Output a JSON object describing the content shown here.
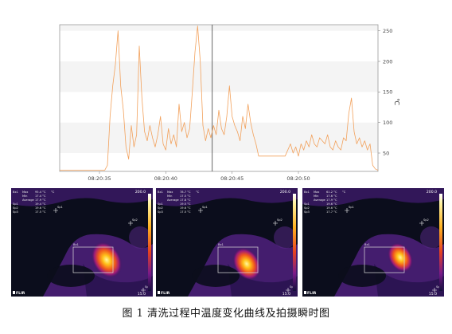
{
  "chart_data": {
    "type": "line",
    "ylabel": "℃",
    "ylim": [
      20,
      260
    ],
    "y_ticks": [
      50,
      100,
      150,
      200,
      250
    ],
    "x_range": [
      "08:20:32",
      "08:20:56"
    ],
    "x_ticks": [
      "08:20:35",
      "08:20:40",
      "08:20:45",
      "08:20:50"
    ],
    "cursor_time": "08:20:43.5",
    "grid": "horizontal bands",
    "series": [
      {
        "color": "#f2a15c",
        "points": [
          [
            "08:20:32.0",
            22
          ],
          [
            "08:20:33.0",
            22
          ],
          [
            "08:20:34.0",
            22
          ],
          [
            "08:20:35.0",
            22
          ],
          [
            "08:20:35.4",
            22
          ],
          [
            "08:20:35.6",
            30
          ],
          [
            "08:20:35.8",
            110
          ],
          [
            "08:20:36.0",
            160
          ],
          [
            "08:20:36.2",
            195
          ],
          [
            "08:20:36.4",
            250
          ],
          [
            "08:20:36.6",
            160
          ],
          [
            "08:20:36.8",
            120
          ],
          [
            "08:20:37.0",
            60
          ],
          [
            "08:20:37.2",
            40
          ],
          [
            "08:20:37.4",
            95
          ],
          [
            "08:20:37.6",
            60
          ],
          [
            "08:20:37.8",
            80
          ],
          [
            "08:20:38.0",
            225
          ],
          [
            "08:20:38.2",
            140
          ],
          [
            "08:20:38.4",
            85
          ],
          [
            "08:20:38.6",
            70
          ],
          [
            "08:20:38.8",
            95
          ],
          [
            "08:20:39.0",
            75
          ],
          [
            "08:20:39.2",
            60
          ],
          [
            "08:20:39.4",
            80
          ],
          [
            "08:20:39.6",
            110
          ],
          [
            "08:20:39.8",
            65
          ],
          [
            "08:20:40.0",
            55
          ],
          [
            "08:20:40.2",
            90
          ],
          [
            "08:20:40.4",
            65
          ],
          [
            "08:20:40.6",
            80
          ],
          [
            "08:20:40.8",
            60
          ],
          [
            "08:20:41.0",
            130
          ],
          [
            "08:20:41.2",
            85
          ],
          [
            "08:20:41.4",
            100
          ],
          [
            "08:20:41.6",
            75
          ],
          [
            "08:20:41.8",
            90
          ],
          [
            "08:20:42.0",
            150
          ],
          [
            "08:20:42.2",
            215
          ],
          [
            "08:20:42.4",
            258
          ],
          [
            "08:20:42.6",
            200
          ],
          [
            "08:20:42.8",
            95
          ],
          [
            "08:20:43.0",
            70
          ],
          [
            "08:20:43.2",
            90
          ],
          [
            "08:20:43.4",
            75
          ],
          [
            "08:20:43.6",
            95
          ],
          [
            "08:20:43.8",
            80
          ],
          [
            "08:20:44.0",
            120
          ],
          [
            "08:20:44.2",
            90
          ],
          [
            "08:20:44.4",
            80
          ],
          [
            "08:20:44.6",
            110
          ],
          [
            "08:20:44.8",
            160
          ],
          [
            "08:20:45.0",
            110
          ],
          [
            "08:20:45.2",
            95
          ],
          [
            "08:20:45.4",
            85
          ],
          [
            "08:20:45.6",
            70
          ],
          [
            "08:20:45.8",
            110
          ],
          [
            "08:20:46.0",
            90
          ],
          [
            "08:20:46.2",
            130
          ],
          [
            "08:20:46.4",
            100
          ],
          [
            "08:20:46.6",
            80
          ],
          [
            "08:20:46.8",
            65
          ],
          [
            "08:20:47.0",
            45
          ],
          [
            "08:20:48.0",
            45
          ],
          [
            "08:20:49.0",
            45
          ],
          [
            "08:20:49.2",
            55
          ],
          [
            "08:20:49.4",
            65
          ],
          [
            "08:20:49.6",
            50
          ],
          [
            "08:20:49.8",
            60
          ],
          [
            "08:20:50.0",
            45
          ],
          [
            "08:20:50.2",
            65
          ],
          [
            "08:20:50.4",
            55
          ],
          [
            "08:20:50.6",
            70
          ],
          [
            "08:20:50.8",
            60
          ],
          [
            "08:20:51.0",
            80
          ],
          [
            "08:20:51.2",
            65
          ],
          [
            "08:20:51.4",
            60
          ],
          [
            "08:20:51.6",
            75
          ],
          [
            "08:20:51.8",
            70
          ],
          [
            "08:20:52.0",
            65
          ],
          [
            "08:20:52.2",
            80
          ],
          [
            "08:20:52.4",
            60
          ],
          [
            "08:20:52.6",
            55
          ],
          [
            "08:20:52.8",
            70
          ],
          [
            "08:20:53.0",
            60
          ],
          [
            "08:20:53.2",
            55
          ],
          [
            "08:20:53.4",
            75
          ],
          [
            "08:20:53.6",
            70
          ],
          [
            "08:20:53.8",
            115
          ],
          [
            "08:20:54.0",
            140
          ],
          [
            "08:20:54.2",
            85
          ],
          [
            "08:20:54.4",
            65
          ],
          [
            "08:20:54.6",
            75
          ],
          [
            "08:20:54.8",
            60
          ],
          [
            "08:20:55.0",
            70
          ],
          [
            "08:20:55.2",
            55
          ],
          [
            "08:20:55.4",
            65
          ],
          [
            "08:20:55.6",
            30
          ],
          [
            "08:20:55.8",
            24
          ],
          [
            "08:20:56.0",
            22
          ]
        ]
      }
    ]
  },
  "thermal_images": [
    {
      "scale_max": "200.0",
      "scale_min": "15.0",
      "unit": "°C",
      "table": [
        [
          "Bx1",
          "Max",
          "95.4 °C"
        ],
        [
          "",
          "Min",
          "17.4 °C"
        ],
        [
          "",
          "Average",
          "17.9 °C"
        ],
        [
          "Sp1",
          "",
          "19.4 °C"
        ],
        [
          "Sp2",
          "",
          "19.6 °C"
        ],
        [
          "Sp3",
          "",
          "17.5 °C"
        ]
      ],
      "markers": [
        "Sp1",
        "Sp2",
        "Sp3",
        "Bx1"
      ],
      "logo": "FLIR"
    },
    {
      "scale_max": "200.0",
      "scale_min": "15.0",
      "unit": "°C",
      "table": [
        [
          "Bx1",
          "Max",
          "78.7 °C"
        ],
        [
          "",
          "Min",
          "17.5 °C"
        ],
        [
          "",
          "Average",
          "17.8 °C"
        ],
        [
          "Sp1",
          "",
          "19.5 °C"
        ],
        [
          "Sp2",
          "",
          "19.6 °C"
        ],
        [
          "Sp3",
          "",
          "17.5 °C"
        ]
      ],
      "markers": [
        "Sp1",
        "Sp2",
        "Sp3",
        "Bx1"
      ],
      "logo": "FLIR"
    },
    {
      "scale_max": "200.0",
      "scale_min": "15.0",
      "unit": "°C",
      "table": [
        [
          "Bx1",
          "Max",
          "61.2 °C"
        ],
        [
          "",
          "Min",
          "17.6 °C"
        ],
        [
          "",
          "Average",
          "17.9 °C"
        ],
        [
          "Sp1",
          "",
          "19.6 °C"
        ],
        [
          "Sp2",
          "",
          "19.6 °C"
        ],
        [
          "Sp3",
          "",
          "17.7 °C"
        ]
      ],
      "markers": [
        "Sp1",
        "Sp2",
        "Sp3",
        "Bx1"
      ],
      "logo": "FLIR"
    }
  ],
  "caption": "图 1    清洗过程中温度变化曲线及拍摄瞬时图"
}
